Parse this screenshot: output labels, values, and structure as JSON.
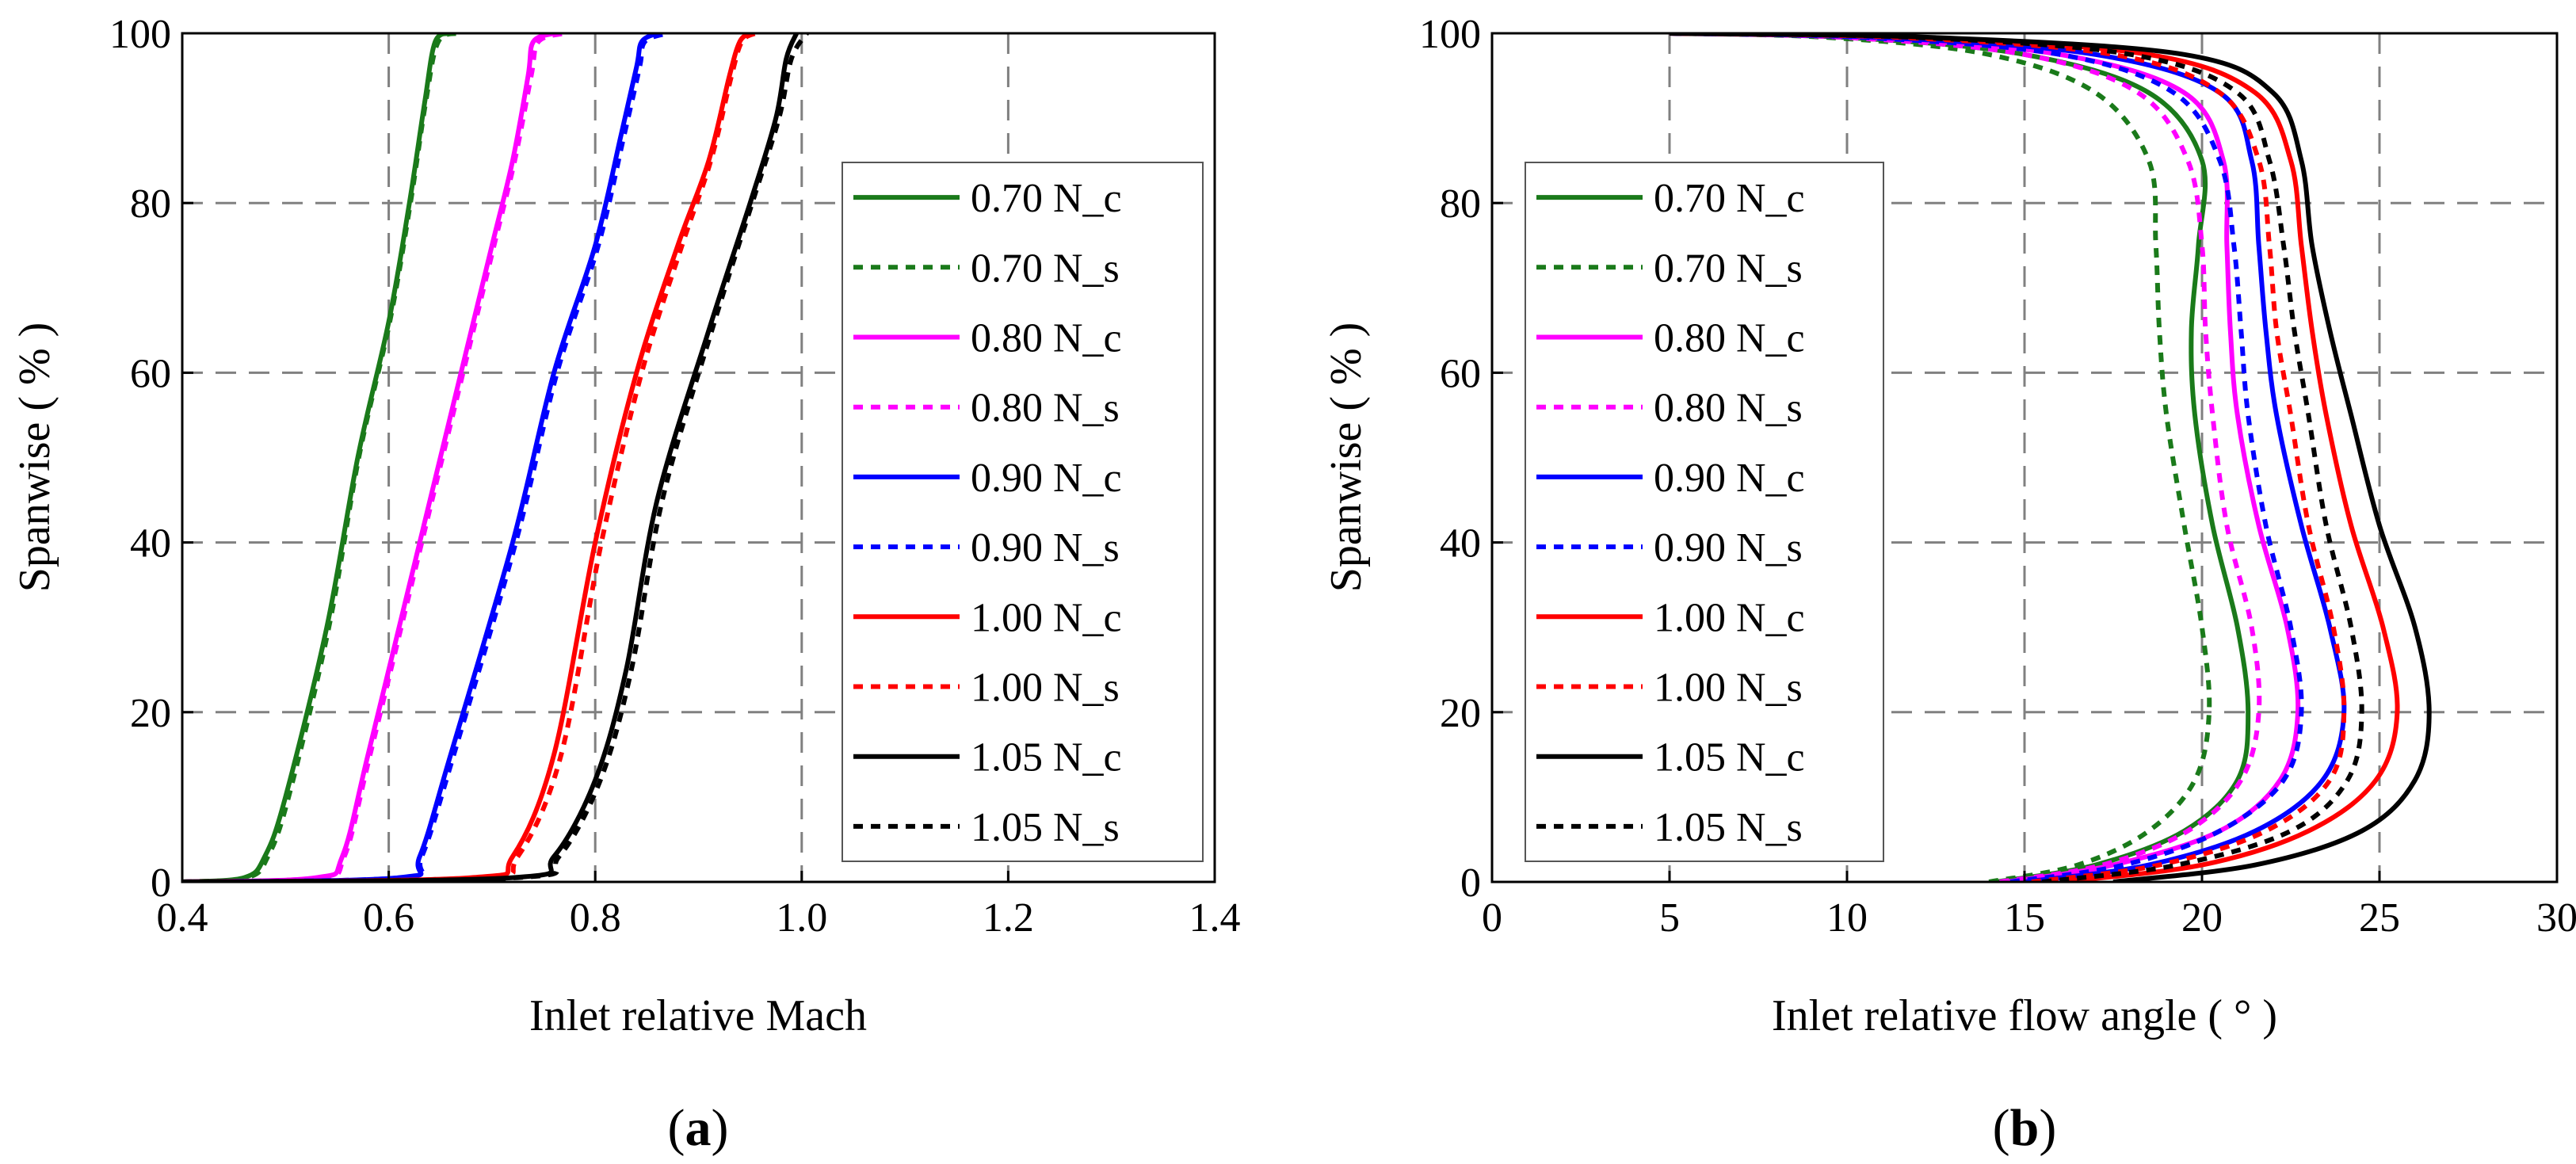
{
  "figure": {
    "panel_a_label": "a",
    "panel_b_label": "b",
    "paren_open": "(",
    "paren_close": ")"
  },
  "chart_data": [
    {
      "type": "line",
      "id": "a",
      "xlabel": "Inlet relative Mach",
      "ylabel": "Spanwise ( % )",
      "xlim": [
        0.4,
        1.4
      ],
      "ylim": [
        0,
        100
      ],
      "xticks": [
        0.4,
        0.6,
        0.8,
        1.0,
        1.2,
        1.4
      ],
      "xtick_labels": [
        "0.4",
        "0.6",
        "0.8",
        "1.0",
        "1.2",
        "1.4"
      ],
      "yticks": [
        0,
        20,
        40,
        60,
        80,
        100
      ],
      "ytick_labels": [
        "0",
        "20",
        "40",
        "60",
        "80",
        "100"
      ],
      "grid": true,
      "legend_position": "right",
      "series": [
        {
          "name": "0.70 N_c",
          "color": "#1a7a1a",
          "dash": "solid",
          "x": [
            0.4,
            0.46,
            0.48,
            0.5,
            0.54,
            0.57,
            0.6,
            0.62,
            0.635,
            0.645,
            0.66
          ],
          "y": [
            0,
            0.5,
            3,
            10,
            30,
            50,
            66,
            80,
            92,
            99,
            100
          ]
        },
        {
          "name": "0.70 N_s",
          "color": "#1a7a1a",
          "dash": "dotted",
          "x": [
            0.4,
            0.463,
            0.483,
            0.503,
            0.542,
            0.571,
            0.601,
            0.621,
            0.636,
            0.648,
            0.67
          ],
          "y": [
            0,
            0.5,
            3,
            10,
            30,
            50,
            66,
            80,
            92,
            99,
            100
          ]
        },
        {
          "name": "0.80 N_c",
          "color": "#ff00ff",
          "dash": "solid",
          "x": [
            0.4,
            0.53,
            0.555,
            0.58,
            0.63,
            0.67,
            0.7,
            0.72,
            0.735,
            0.74,
            0.76
          ],
          "y": [
            0,
            0.5,
            3,
            15,
            40,
            60,
            75,
            85,
            95,
            99,
            100
          ]
        },
        {
          "name": "0.80 N_s",
          "color": "#ff00ff",
          "dash": "dotted",
          "x": [
            0.4,
            0.532,
            0.557,
            0.582,
            0.632,
            0.672,
            0.702,
            0.722,
            0.738,
            0.745,
            0.77
          ],
          "y": [
            0,
            0.5,
            3,
            15,
            40,
            60,
            75,
            85,
            95,
            99,
            100
          ]
        },
        {
          "name": "0.90 N_c",
          "color": "#0000ff",
          "dash": "solid",
          "x": [
            0.4,
            0.61,
            0.63,
            0.66,
            0.72,
            0.76,
            0.8,
            0.825,
            0.84,
            0.845,
            0.86
          ],
          "y": [
            0,
            0.5,
            3,
            15,
            40,
            60,
            75,
            88,
            96,
            99,
            100
          ]
        },
        {
          "name": "0.90 N_s",
          "color": "#0000ff",
          "dash": "dotted",
          "x": [
            0.4,
            0.612,
            0.632,
            0.663,
            0.723,
            0.763,
            0.803,
            0.828,
            0.843,
            0.848,
            0.87
          ],
          "y": [
            0,
            0.5,
            3,
            15,
            40,
            60,
            75,
            88,
            96,
            99,
            100
          ]
        },
        {
          "name": "1.00 N_c",
          "color": "#ff0000",
          "dash": "solid",
          "x": [
            0.4,
            0.68,
            0.72,
            0.76,
            0.8,
            0.84,
            0.88,
            0.91,
            0.93,
            0.94,
            0.95
          ],
          "y": [
            0,
            0.5,
            3,
            15,
            40,
            60,
            75,
            85,
            95,
            99,
            100
          ]
        },
        {
          "name": "1.00 N_s",
          "color": "#ff0000",
          "dash": "dotted",
          "x": [
            0.4,
            0.685,
            0.725,
            0.767,
            0.806,
            0.845,
            0.884,
            0.912,
            0.932,
            0.942,
            0.955
          ],
          "y": [
            0,
            0.5,
            3,
            15,
            40,
            60,
            75,
            85,
            95,
            99,
            100
          ]
        },
        {
          "name": "1.05 N_c",
          "color": "#000000",
          "dash": "solid",
          "x": [
            0.4,
            0.72,
            0.76,
            0.8,
            0.83,
            0.86,
            0.91,
            0.95,
            0.975,
            0.985,
            0.995
          ],
          "y": [
            0,
            0.5,
            3,
            12,
            25,
            45,
            65,
            80,
            90,
            97,
            100
          ]
        },
        {
          "name": "1.05 N_s",
          "color": "#000000",
          "dash": "dotted",
          "x": [
            0.4,
            0.725,
            0.765,
            0.805,
            0.835,
            0.865,
            0.913,
            0.952,
            0.978,
            0.99,
            1.005
          ],
          "y": [
            0,
            0.5,
            3,
            12,
            25,
            45,
            65,
            80,
            90,
            97,
            100
          ]
        }
      ]
    },
    {
      "type": "line",
      "id": "b",
      "xlabel": "Inlet relative flow angle ( ° )",
      "ylabel": "Spanwise ( % )",
      "xlim": [
        0,
        30
      ],
      "ylim": [
        0,
        100
      ],
      "xticks": [
        0,
        5,
        10,
        15,
        20,
        25,
        30
      ],
      "xtick_labels": [
        "0",
        "5",
        "10",
        "15",
        "20",
        "25",
        "30"
      ],
      "yticks": [
        0,
        20,
        40,
        60,
        80,
        100
      ],
      "ytick_labels": [
        "0",
        "20",
        "40",
        "60",
        "80",
        "100"
      ],
      "grid": true,
      "legend_position": "left",
      "series": [
        {
          "name": "0.70 N_c",
          "color": "#1a7a1a",
          "dash": "solid",
          "x": [
            14.2,
            17.0,
            19.5,
            21.0,
            21.3,
            21.0,
            20.3,
            19.8,
            19.7,
            19.9,
            20.0,
            18.5,
            15.0,
            10.0,
            5.0
          ],
          "y": [
            0,
            2,
            6,
            12,
            20,
            30,
            42,
            55,
            65,
            75,
            85,
            93,
            97.5,
            99.5,
            100
          ]
        },
        {
          "name": "0.70 N_s",
          "color": "#1a7a1a",
          "dash": "dotted",
          "x": [
            14.0,
            16.5,
            18.5,
            19.8,
            20.2,
            20.0,
            19.5,
            19.0,
            18.8,
            18.7,
            18.5,
            17.0,
            14.0,
            9.5,
            5.0
          ],
          "y": [
            0,
            2,
            6,
            12,
            20,
            30,
            42,
            55,
            65,
            75,
            85,
            93,
            97.5,
            99.5,
            100
          ]
        },
        {
          "name": "0.80 N_c",
          "color": "#ff00ff",
          "dash": "solid",
          "x": [
            14.5,
            17.5,
            20.5,
            22.2,
            22.7,
            22.4,
            21.6,
            21.0,
            20.8,
            20.7,
            20.6,
            19.5,
            16.0,
            10.5,
            5.0
          ],
          "y": [
            0,
            2,
            6,
            12,
            20,
            30,
            42,
            55,
            65,
            75,
            85,
            93,
            97.5,
            99.5,
            100
          ]
        },
        {
          "name": "0.80 N_s",
          "color": "#ff00ff",
          "dash": "dotted",
          "x": [
            14.3,
            17.2,
            19.6,
            21.1,
            21.6,
            21.4,
            20.7,
            20.3,
            20.1,
            20.0,
            19.6,
            18.2,
            15.0,
            10.0,
            5.0
          ],
          "y": [
            0,
            2,
            6,
            12,
            20,
            30,
            42,
            55,
            65,
            75,
            85,
            93,
            97.5,
            99.5,
            100
          ]
        },
        {
          "name": "0.90 N_c",
          "color": "#0000ff",
          "dash": "solid",
          "x": [
            15.0,
            18.5,
            21.5,
            23.4,
            24.0,
            23.6,
            22.8,
            22.1,
            21.8,
            21.6,
            21.4,
            20.5,
            17.0,
            11.0,
            5.0
          ],
          "y": [
            0,
            2,
            6,
            12,
            20,
            30,
            42,
            55,
            65,
            75,
            85,
            93,
            97.5,
            99.5,
            100
          ]
        },
        {
          "name": "0.90 N_s",
          "color": "#0000ff",
          "dash": "dotted",
          "x": [
            14.6,
            17.8,
            20.5,
            22.3,
            22.8,
            22.5,
            21.8,
            21.3,
            21.1,
            20.9,
            20.5,
            19.2,
            16.0,
            10.5,
            5.0
          ],
          "y": [
            0,
            2,
            6,
            12,
            20,
            30,
            42,
            55,
            65,
            75,
            85,
            93,
            97.5,
            99.5,
            100
          ]
        },
        {
          "name": "1.00 N_c",
          "color": "#ff0000",
          "dash": "solid",
          "x": [
            16.0,
            20.0,
            23.0,
            24.9,
            25.5,
            25.1,
            24.2,
            23.5,
            23.1,
            22.8,
            22.5,
            21.5,
            18.5,
            12.0,
            5.0
          ],
          "y": [
            0,
            2,
            6,
            12,
            20,
            30,
            42,
            55,
            65,
            75,
            85,
            93,
            97.5,
            99.5,
            100
          ]
        },
        {
          "name": "1.00 N_s",
          "color": "#ff0000",
          "dash": "dotted",
          "x": [
            15.2,
            18.8,
            21.8,
            23.6,
            24.0,
            23.7,
            23.0,
            22.5,
            22.1,
            21.9,
            21.6,
            20.5,
            17.5,
            11.5,
            5.0
          ],
          "y": [
            0,
            2,
            6,
            12,
            20,
            30,
            42,
            55,
            65,
            75,
            85,
            93,
            97.5,
            99.5,
            100
          ]
        },
        {
          "name": "1.05 N_c",
          "color": "#000000",
          "dash": "solid",
          "x": [
            17.5,
            21.5,
            24.5,
            26.0,
            26.4,
            26.0,
            25.0,
            24.2,
            23.6,
            23.1,
            22.8,
            22.0,
            19.5,
            12.5,
            5.0
          ],
          "y": [
            0,
            2,
            6,
            12,
            20,
            30,
            42,
            55,
            65,
            75,
            85,
            93,
            97.5,
            99.5,
            100
          ]
        },
        {
          "name": "1.05 N_s",
          "color": "#000000",
          "dash": "dotted",
          "x": [
            15.5,
            19.3,
            22.5,
            24.1,
            24.5,
            24.2,
            23.5,
            23.0,
            22.6,
            22.3,
            21.9,
            21.0,
            18.0,
            12.0,
            5.0
          ],
          "y": [
            0,
            2,
            6,
            12,
            20,
            30,
            42,
            55,
            65,
            75,
            85,
            93,
            97.5,
            99.5,
            100
          ]
        }
      ]
    }
  ]
}
